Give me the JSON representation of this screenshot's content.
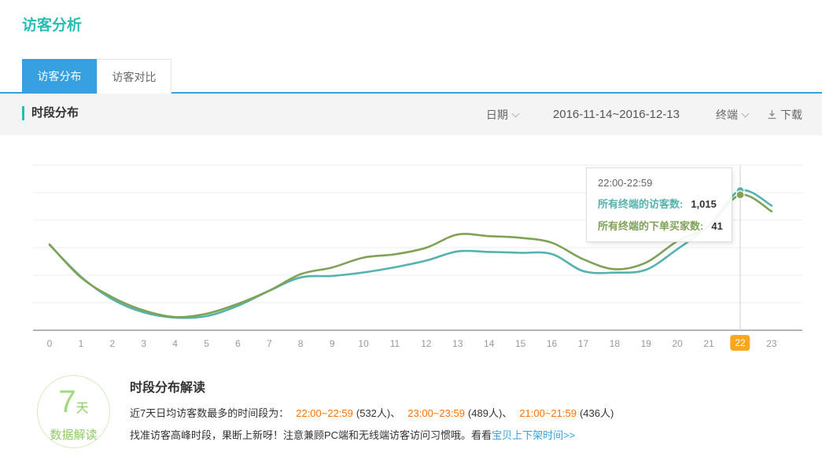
{
  "page": {
    "title": "访客分析"
  },
  "tabs": [
    {
      "label": "访客分布",
      "active": true
    },
    {
      "label": "访客对比",
      "active": false
    }
  ],
  "toolbar": {
    "section_title": "时段分布",
    "date_label": "日期",
    "date_range": "2016-11-14~2016-12-13",
    "terminal_label": "终端",
    "download_label": "下载"
  },
  "colors": {
    "brand_teal": "#26beb4",
    "tab_blue": "#36a0e0",
    "series_visitors": "#55b2ae",
    "series_buyers": "#7fa257",
    "highlight_orange_badge": "#fca61d",
    "peak_time_orange": "#ff7300",
    "link_blue": "#36a0e0",
    "insight_green": "#8fca65"
  },
  "chart_data": {
    "type": "line",
    "title": "时段分布",
    "xlabel": "",
    "ylabel": "",
    "grid": true,
    "legend_position": "none",
    "y_axis_labels_visible": false,
    "x": [
      0,
      1,
      2,
      3,
      4,
      5,
      6,
      7,
      8,
      9,
      10,
      11,
      12,
      13,
      14,
      15,
      16,
      17,
      18,
      19,
      20,
      21,
      22,
      23
    ],
    "series": [
      {
        "name": "所有终端的访客数",
        "color": "#55b2ae",
        "axis_max": 1200,
        "values": [
          620,
          390,
          225,
          130,
          92,
          103,
          178,
          287,
          384,
          395,
          420,
          458,
          506,
          573,
          569,
          563,
          554,
          430,
          419,
          440,
          590,
          760,
          1015,
          906
        ]
      },
      {
        "name": "所有终端的下单买家数",
        "color": "#7fa257",
        "axis_max": 50,
        "values": [
          26,
          16,
          10,
          6,
          4,
          5,
          8,
          12,
          17,
          19,
          22,
          23,
          25,
          29,
          28.5,
          28,
          26.5,
          21.5,
          18.5,
          20.5,
          27,
          31.5,
          41,
          36
        ]
      }
    ],
    "highlight_hour": 22
  },
  "tooltip": {
    "time_range": "22:00-22:59",
    "rows": [
      {
        "label": "所有终端的访客数:",
        "value": "1,015",
        "color": "#55b2ae"
      },
      {
        "label": "所有终端的下单买家数:",
        "value": "41",
        "color": "#7fa257"
      }
    ]
  },
  "insight": {
    "badge_big": "7",
    "badge_big_suffix": "天",
    "badge_caption": "数据解读",
    "heading": "时段分布解读",
    "line1_prefix": "近7天日均访客数最多的时间段为：",
    "peaks": [
      {
        "time": "22:00~22:59",
        "count": "(532人)"
      },
      {
        "time": "23:00~23:59",
        "count": "(489人)"
      },
      {
        "time": "21:00~21:59",
        "count": "(436人)"
      }
    ],
    "separator": "、",
    "line2_text": "找准访客高峰时段，果断上新呀！注意兼顾PC端和无线端访客访问习惯哦。看看",
    "line2_link": "宝贝上下架时间>>"
  }
}
